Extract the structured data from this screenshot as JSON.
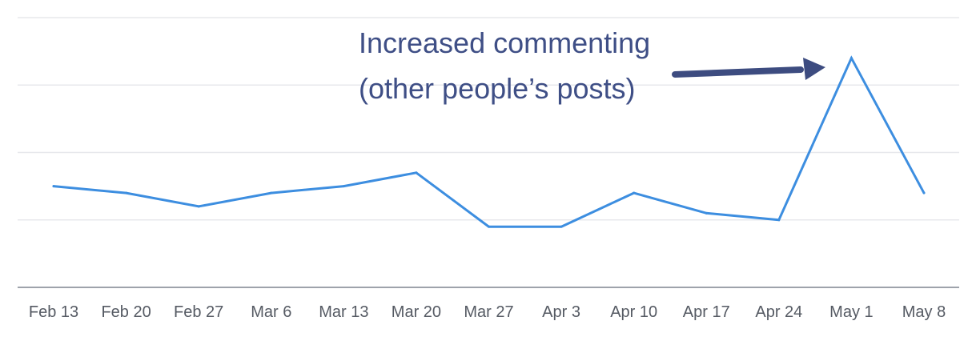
{
  "chart_data": {
    "type": "line",
    "categories": [
      "Feb 13",
      "Feb 20",
      "Feb 27",
      "Mar 6",
      "Mar 13",
      "Mar 20",
      "Mar 27",
      "Apr 3",
      "Apr 10",
      "Apr 17",
      "Apr 24",
      "May 1",
      "May 8"
    ],
    "series": [
      {
        "values": [
          3.0,
          2.8,
          2.4,
          2.8,
          3.0,
          3.4,
          1.8,
          1.8,
          2.8,
          2.2,
          2.0,
          6.8,
          2.8
        ]
      }
    ],
    "ylim": [
      0,
      8
    ],
    "y_gridlines": [
      2,
      4,
      6,
      8
    ],
    "grid": true,
    "legend": "none",
    "annotation": {
      "line1": "Increased commenting",
      "line2": "(other people’s posts)",
      "points_to": "May 1"
    },
    "colors": {
      "line": "#3d8ee0",
      "grid": "#e7e8ec",
      "axis": "#9ea3ab",
      "tick_text": "#555a63",
      "annotation": "#3f4f86",
      "arrow": "#3d4c80"
    }
  }
}
